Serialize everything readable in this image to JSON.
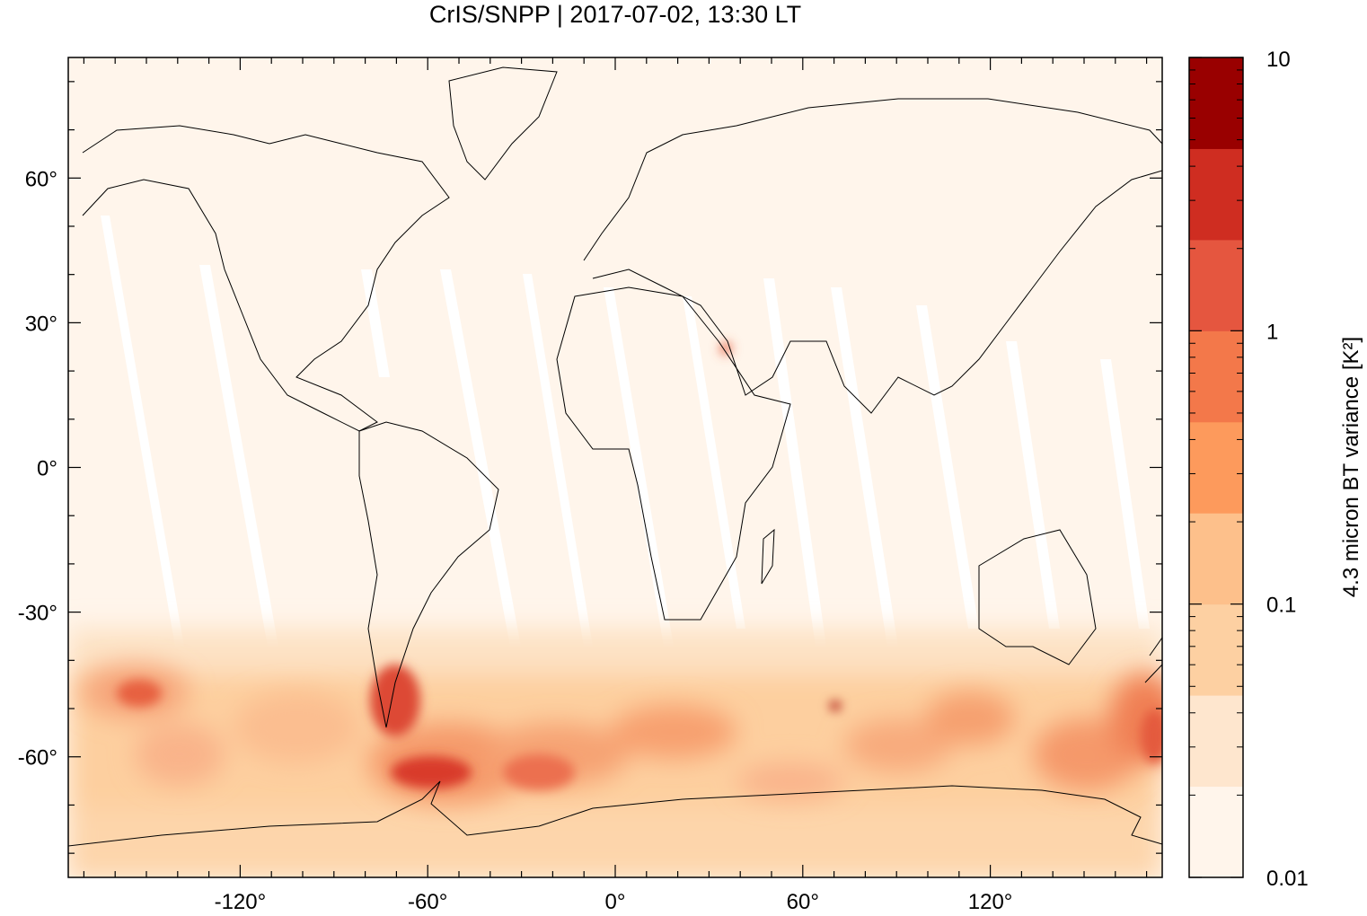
{
  "title": "CrIS/SNPP | 2017-07-02, 13:30 LT",
  "map": {
    "projection": "equirectangular",
    "lon_range": [
      -175,
      175
    ],
    "lat_range": [
      -85,
      85
    ],
    "x_ticks": [
      {
        "value": -120,
        "label": "-120°"
      },
      {
        "value": -60,
        "label": "-60°"
      },
      {
        "value": 0,
        "label": "0°"
      },
      {
        "value": 60,
        "label": "60°"
      },
      {
        "value": 120,
        "label": "120°"
      }
    ],
    "y_ticks": [
      {
        "value": 60,
        "label": "60°"
      },
      {
        "value": 30,
        "label": "30°"
      },
      {
        "value": 0,
        "label": "0°"
      },
      {
        "value": -30,
        "label": "-30°"
      },
      {
        "value": -60,
        "label": "-60°"
      }
    ],
    "background_color": "#fff5eb",
    "coastline_color": "#000000"
  },
  "colorbar": {
    "label": "4.3 micron BT variance [K²]",
    "scale": "log",
    "range": [
      0.01,
      10
    ],
    "tick_labels": [
      {
        "value": 10,
        "label": "10"
      },
      {
        "value": 1,
        "label": "1"
      },
      {
        "value": 0.1,
        "label": "0.1"
      },
      {
        "value": 0.01,
        "label": "0.01"
      }
    ],
    "colors": [
      "#fff5eb",
      "#fee6ce",
      "#fdd0a2",
      "#fdc08b",
      "#fd9a5c",
      "#f3784a",
      "#e5563f",
      "#cf2d21",
      "#990000"
    ]
  }
}
